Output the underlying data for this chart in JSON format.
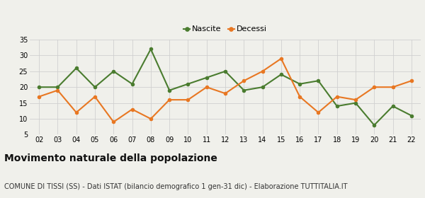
{
  "years": [
    "02",
    "03",
    "04",
    "05",
    "06",
    "07",
    "08",
    "09",
    "10",
    "11",
    "12",
    "13",
    "14",
    "15",
    "16",
    "17",
    "18",
    "19",
    "20",
    "21",
    "22"
  ],
  "nascite": [
    20,
    20,
    26,
    20,
    25,
    21,
    32,
    19,
    21,
    23,
    25,
    19,
    20,
    24,
    21,
    22,
    14,
    15,
    8,
    14,
    11
  ],
  "decessi": [
    17,
    19,
    12,
    17,
    9,
    13,
    10,
    16,
    16,
    20,
    18,
    22,
    25,
    29,
    17,
    12,
    17,
    16,
    20,
    20,
    22
  ],
  "nascite_color": "#4a7c2f",
  "decessi_color": "#e87722",
  "background_color": "#f0f0eb",
  "grid_color": "#d0d0d0",
  "ylim": [
    5,
    35
  ],
  "yticks": [
    5,
    10,
    15,
    20,
    25,
    30,
    35
  ],
  "title": "Movimento naturale della popolazione",
  "subtitle": "COMUNE DI TISSI (SS) - Dati ISTAT (bilancio demografico 1 gen-31 dic) - Elaborazione TUTTITALIA.IT",
  "legend_nascite": "Nascite",
  "legend_decessi": "Decessi",
  "title_fontsize": 10,
  "subtitle_fontsize": 7,
  "tick_fontsize": 7,
  "legend_fontsize": 8,
  "marker_size": 4,
  "line_width": 1.5
}
